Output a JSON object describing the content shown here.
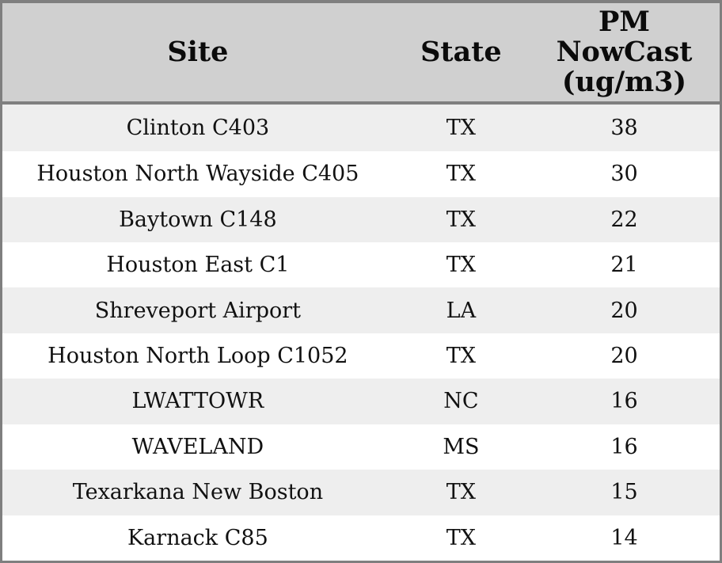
{
  "chart_data": {
    "type": "table",
    "columns": [
      "Site",
      "State",
      "PM NowCast (ug/m3)"
    ],
    "rows": [
      {
        "site": "Clinton C403",
        "state": "TX",
        "pm_nowcast": 38
      },
      {
        "site": "Houston North Wayside C405",
        "state": "TX",
        "pm_nowcast": 30
      },
      {
        "site": "Baytown C148",
        "state": "TX",
        "pm_nowcast": 22
      },
      {
        "site": "Houston East C1",
        "state": "TX",
        "pm_nowcast": 21
      },
      {
        "site": "Shreveport Airport",
        "state": "LA",
        "pm_nowcast": 20
      },
      {
        "site": "Houston North Loop C1052",
        "state": "TX",
        "pm_nowcast": 20
      },
      {
        "site": "LWATTOWR",
        "state": "NC",
        "pm_nowcast": 16
      },
      {
        "site": "WAVELAND",
        "state": "MS",
        "pm_nowcast": 16
      },
      {
        "site": "Texarkana New Boston",
        "state": "TX",
        "pm_nowcast": 15
      },
      {
        "site": "Karnack C85",
        "state": "TX",
        "pm_nowcast": 14
      }
    ]
  },
  "table": {
    "header": {
      "site_label": "Site",
      "state_label": "State",
      "pm_label_lines": [
        "PM",
        "NowCast",
        "(ug/m3)"
      ]
    },
    "rows": [
      {
        "site": "Clinton C403",
        "state": "TX",
        "value": "38"
      },
      {
        "site": "Houston North Wayside C405",
        "state": "TX",
        "value": "30"
      },
      {
        "site": "Baytown C148",
        "state": "TX",
        "value": "22"
      },
      {
        "site": "Houston East C1",
        "state": "TX",
        "value": "21"
      },
      {
        "site": "Shreveport Airport",
        "state": "LA",
        "value": "20"
      },
      {
        "site": "Houston North Loop C1052",
        "state": "TX",
        "value": "20"
      },
      {
        "site": "LWATTOWR",
        "state": "NC",
        "value": "16"
      },
      {
        "site": "WAVELAND",
        "state": "MS",
        "value": "16"
      },
      {
        "site": "Texarkana New Boston",
        "state": "TX",
        "value": "15"
      },
      {
        "site": "Karnack C85",
        "state": "TX",
        "value": "14"
      }
    ]
  },
  "colors": {
    "header_bg": "#d0d0d0",
    "row_alt_bg": "#eeeeee",
    "row_bg": "#ffffff",
    "border": "#7f7f7f",
    "text": "#111111"
  }
}
